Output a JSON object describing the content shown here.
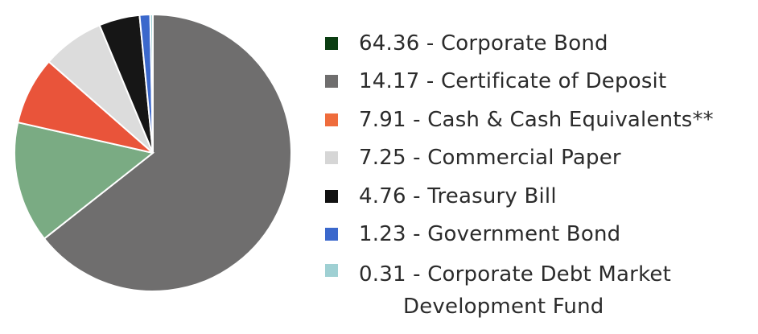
{
  "chart_data": {
    "type": "pie",
    "slices": [
      {
        "label": "64.36 - Corporate Bond",
        "value": 64.36,
        "legend_color": "#0b3d12",
        "slice_color": "#6f6e6e"
      },
      {
        "label": "14.17 - Certificate of Deposit",
        "value": 14.17,
        "legend_color": "#6f6e6e",
        "slice_color": "#7aab83"
      },
      {
        "label": "7.91 - Cash & Cash Equivalents**",
        "value": 7.91,
        "legend_color": "#ef6c3c",
        "slice_color": "#e9543a"
      },
      {
        "label": "7.25 - Commercial Paper",
        "value": 7.25,
        "legend_color": "#d6d6d6",
        "slice_color": "#dcdcdc"
      },
      {
        "label": "4.76 - Treasury Bill",
        "value": 4.76,
        "legend_color": "#111111",
        "slice_color": "#161616"
      },
      {
        "label": "1.23 - Government Bond",
        "value": 1.23,
        "legend_color": "#3b68cc",
        "slice_color": "#3b68cc"
      },
      {
        "label_line1": "0.31 - Corporate Debt Market",
        "label_line2": "Development Fund",
        "value": 0.31,
        "legend_color": "#9fd0d3",
        "slice_color": "#9fd0d3"
      }
    ],
    "title": "",
    "legend_position": "right"
  }
}
